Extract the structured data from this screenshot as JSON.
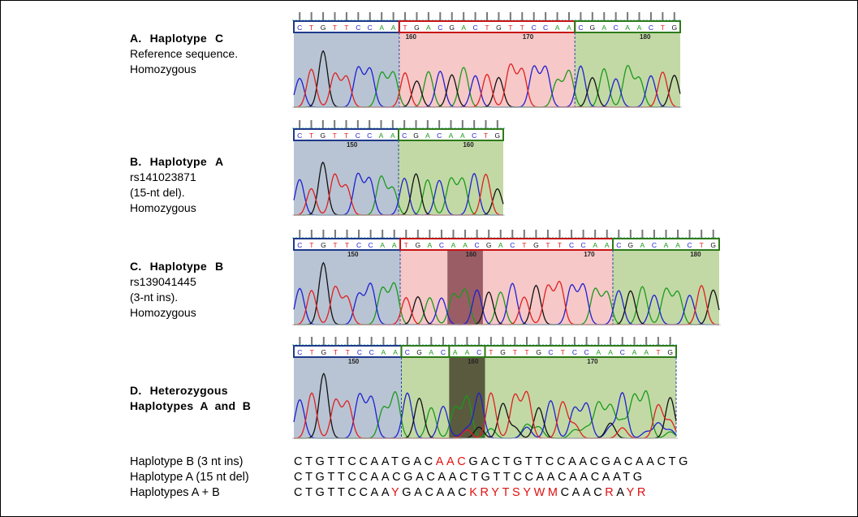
{
  "panels": [
    {
      "id": "A",
      "title": "A.",
      "title_words": [
        "Haplotype",
        "C"
      ],
      "desc": [
        "Reference sequence.",
        "Homozygous"
      ],
      "bases": "CTGTTCCAATGACGACTGTTCCAACGACAACTG",
      "positions": [
        {
          "label": "160",
          "index": 10
        },
        {
          "label": "170",
          "index": 20
        },
        {
          "label": "180",
          "index": 30
        }
      ],
      "boxes": [
        {
          "from": 0,
          "to": 9,
          "color": "#1f3a8a"
        },
        {
          "from": 9,
          "to": 24,
          "color": "#c81414"
        },
        {
          "from": 24,
          "to": 33,
          "color": "#2f7a1a"
        }
      ],
      "shades": [
        {
          "from": 0,
          "to": 9,
          "color": "#b8c4d4"
        },
        {
          "from": 9,
          "to": 24,
          "color": "#f6c8c8"
        },
        {
          "from": 24,
          "to": 33,
          "color": "#c2d9a6"
        }
      ]
    },
    {
      "id": "B",
      "title": "B.",
      "title_words": [
        "Haplotype",
        "A"
      ],
      "desc": [
        "rs141023871",
        "(15-nt del).",
        "Homozygous"
      ],
      "bases": "CTGTTCCAACGACAACTG",
      "positions": [
        {
          "label": "150",
          "index": 5
        },
        {
          "label": "160",
          "index": 15
        }
      ],
      "boxes": [
        {
          "from": 0,
          "to": 9,
          "color": "#1f3a8a"
        },
        {
          "from": 9,
          "to": 18,
          "color": "#2f7a1a"
        }
      ],
      "shades": [
        {
          "from": 0,
          "to": 9,
          "color": "#b8c4d4"
        },
        {
          "from": 9,
          "to": 18,
          "color": "#c2d9a6"
        }
      ]
    },
    {
      "id": "C",
      "title": "C.",
      "title_words": [
        "Haplotype",
        "B"
      ],
      "desc": [
        "rs139041445",
        "(3-nt ins).",
        "Homozygous"
      ],
      "bases": "CTGTTCCAATGACAACGACTGTTCCAACGACAACTG",
      "positions": [
        {
          "label": "150",
          "index": 5
        },
        {
          "label": "160",
          "index": 15
        },
        {
          "label": "170",
          "index": 25
        },
        {
          "label": "180",
          "index": 34
        }
      ],
      "boxes": [
        {
          "from": 0,
          "to": 9,
          "color": "#1f3a8a"
        },
        {
          "from": 9,
          "to": 27,
          "color": "#c81414"
        },
        {
          "from": 27,
          "to": 36,
          "color": "#2f7a1a"
        }
      ],
      "shades": [
        {
          "from": 0,
          "to": 9,
          "color": "#b8c4d4"
        },
        {
          "from": 9,
          "to": 27,
          "color": "#f6c8c8"
        },
        {
          "from": 27,
          "to": 36,
          "color": "#c2d9a6"
        },
        {
          "from": 13,
          "to": 16,
          "color": "#8a4a55"
        }
      ]
    },
    {
      "id": "D",
      "title": "D.",
      "title_words": [
        "Heterozygous",
        "Haplotypes  A  and  B"
      ],
      "desc": [],
      "bases": "CTGTTCCAACGACAACTGTTGCTCCAACAATG",
      "positions": [
        {
          "label": "150",
          "index": 5
        },
        {
          "label": "160",
          "index": 15
        },
        {
          "label": "170",
          "index": 25
        }
      ],
      "boxes": [
        {
          "from": 0,
          "to": 9,
          "color": "#1f3a8a"
        },
        {
          "from": 9,
          "to": 32,
          "color": "#2f7a1a"
        },
        {
          "from": 13,
          "to": 16,
          "color": "#2f7a1a"
        }
      ],
      "shades": [
        {
          "from": 0,
          "to": 9,
          "color": "#b8c4d4"
        },
        {
          "from": 9,
          "to": 32,
          "color": "#c2d9a6"
        },
        {
          "from": 13,
          "to": 16,
          "color": "#5a5a3e"
        }
      ]
    }
  ],
  "alignment": [
    {
      "name": "Haplotype B (3 nt ins)",
      "sequence": "CTGTTCCAATGACAACGACTGTTCCAACGACAACTG",
      "red": [
        13,
        14,
        15
      ]
    },
    {
      "name": "Haplotype A (15 nt del)",
      "sequence": "CTGTTCCAACGACAACTGTTCCAACAACAATG",
      "red": []
    },
    {
      "name": "Haplotypes A + B",
      "sequence": "CTGTTCCAAYGACAACKRYTSYWMCAACRAYR",
      "red": [
        9,
        16,
        17,
        18,
        19,
        20,
        21,
        22,
        23,
        28,
        30,
        31
      ]
    }
  ]
}
